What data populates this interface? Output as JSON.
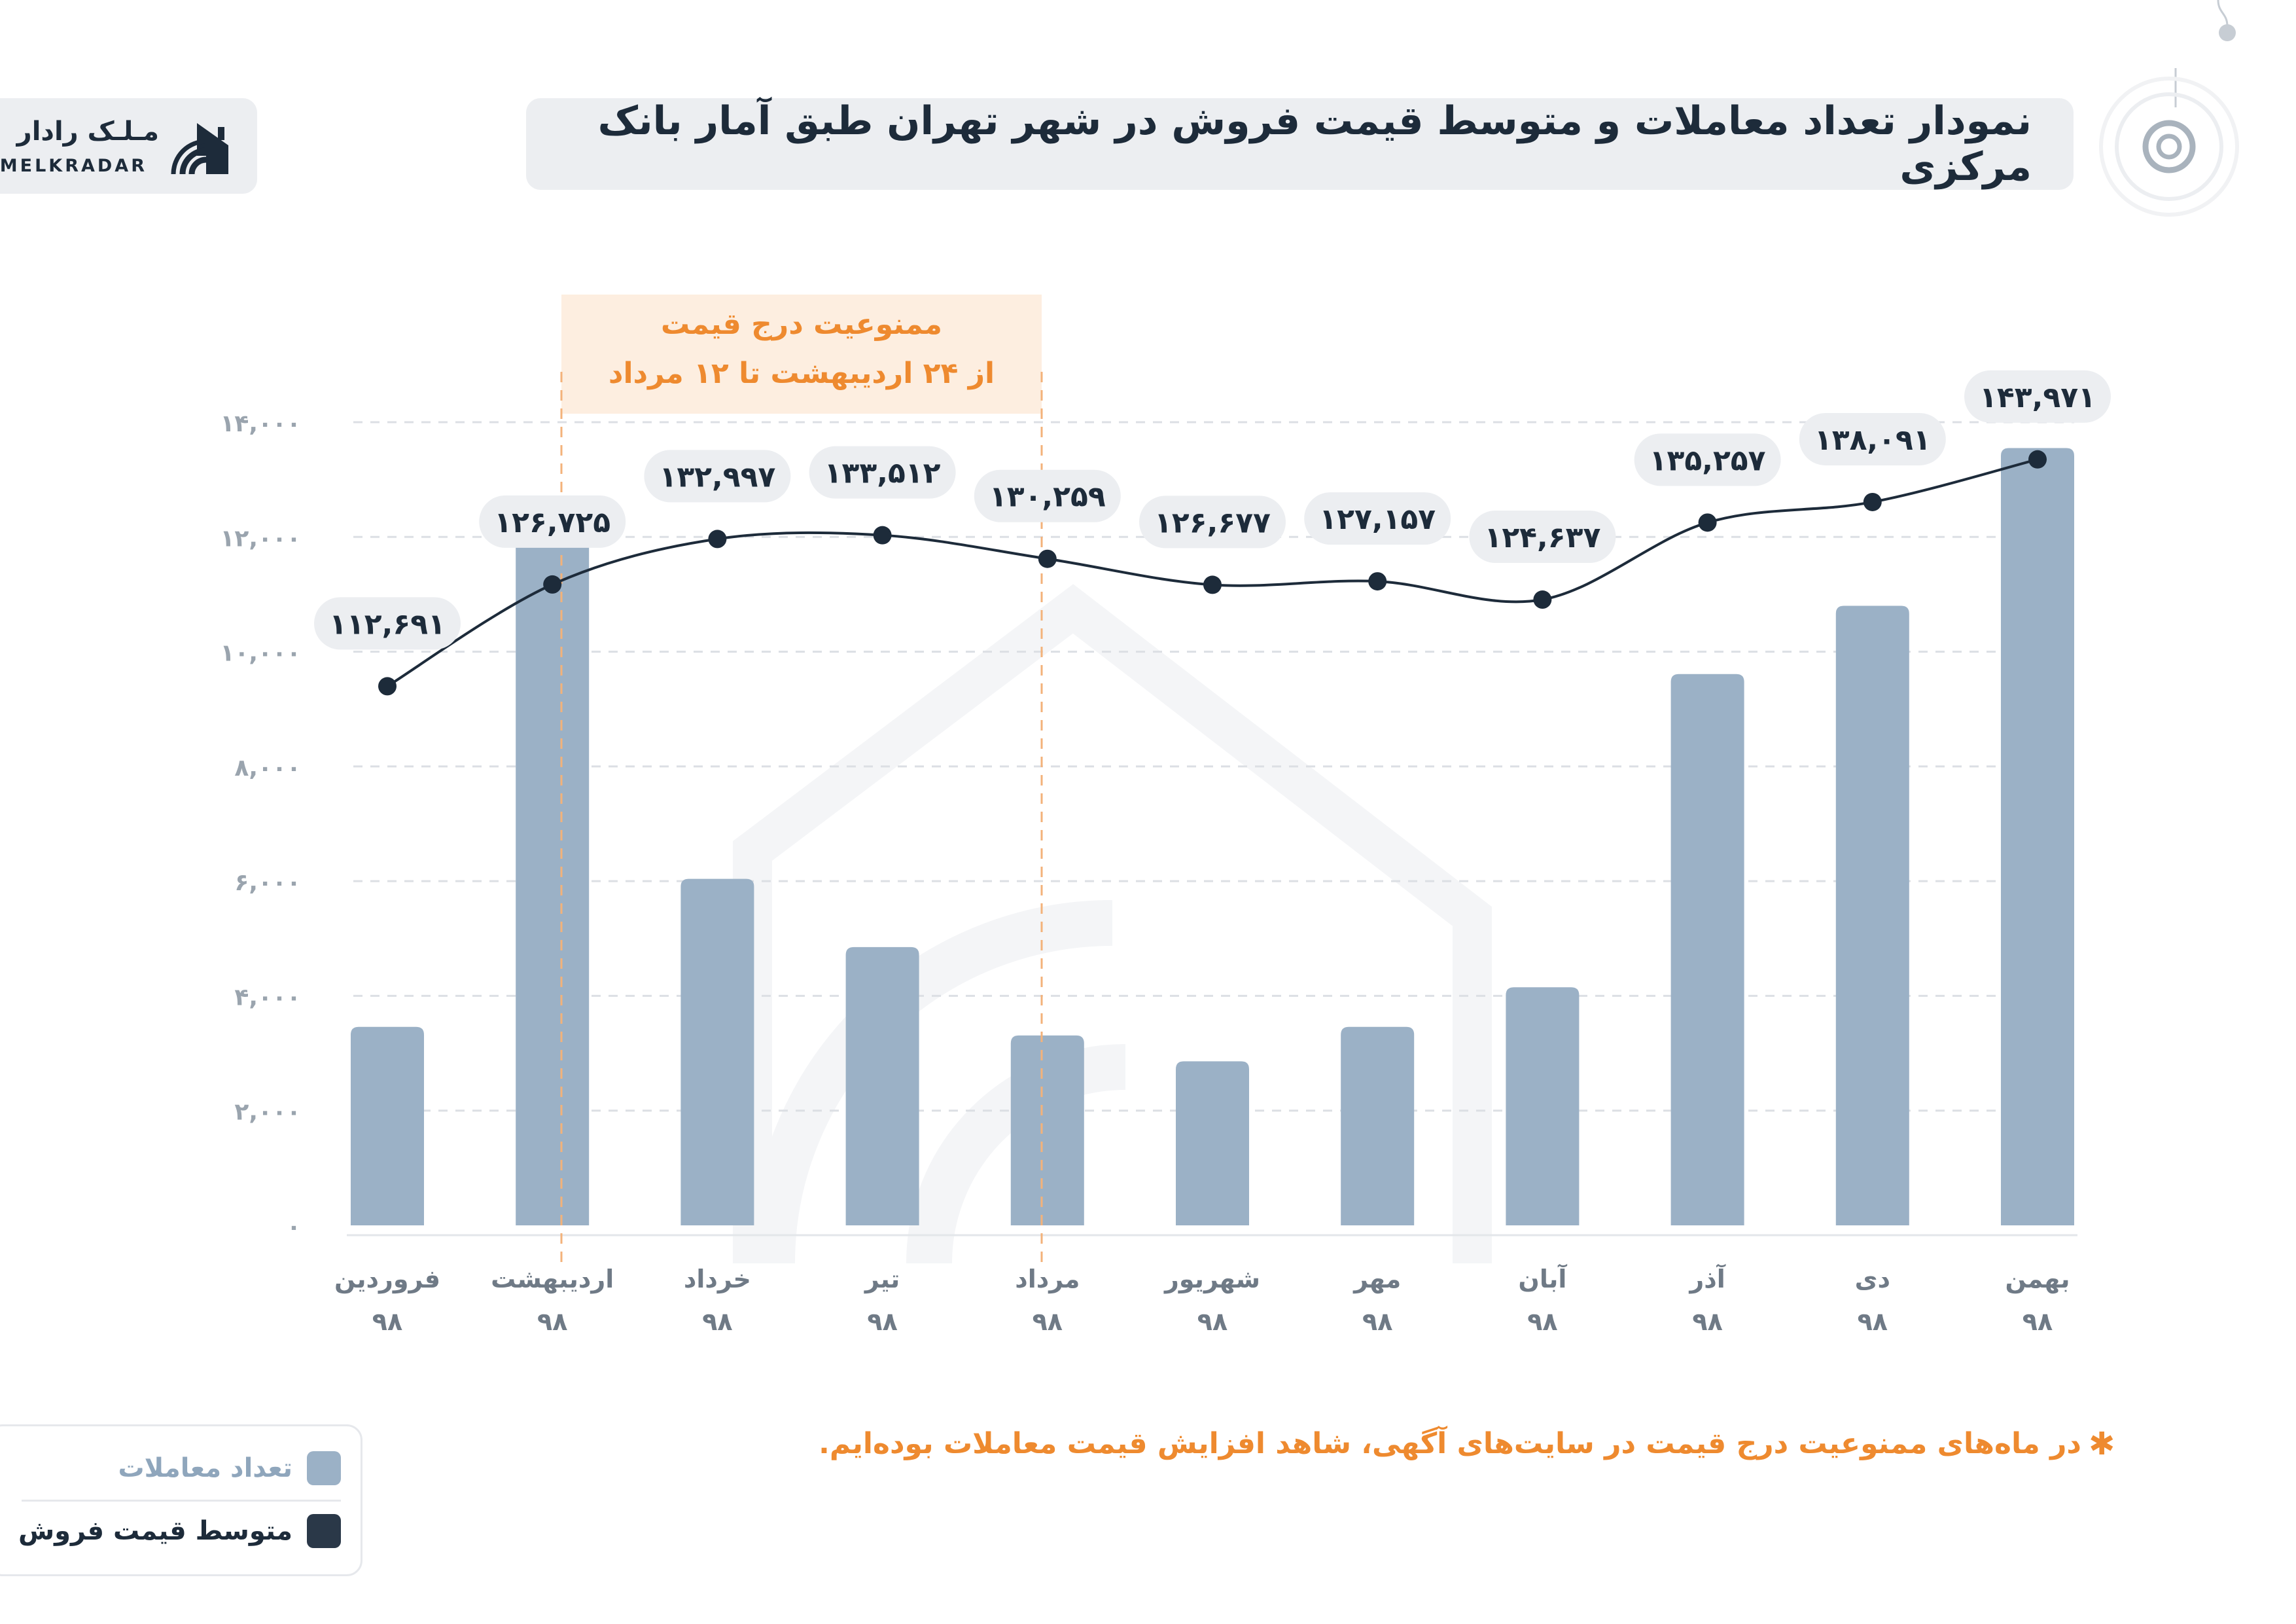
{
  "header": {
    "title": "نمودار تعداد معاملات و متوسط قیمت فروش در شهر تهران طبق آمار بانک مرکزی",
    "logo_fa": "مـلـک رادار",
    "logo_en": "MELKRADAR"
  },
  "colors": {
    "bar": "#9bb1c6",
    "line": "#1d2b3a",
    "accent": "#ee8a2f",
    "ban_fill": "#fdeee0",
    "label_bg": "#eceef1",
    "grid": "#dcdfe4"
  },
  "chart_data": {
    "type": "bar",
    "categories": [
      "فروردین",
      "اردیبهشت",
      "خرداد",
      "تیر",
      "مرداد",
      "شهریور",
      "مهر",
      "آبان",
      "آذر",
      "دی",
      "بهمن"
    ],
    "year_label": "۹۸",
    "ylim": [
      0,
      14000
    ],
    "y_ticks": [
      {
        "value": 0,
        "label": "۰"
      },
      {
        "value": 2000,
        "label": "۲,۰۰۰"
      },
      {
        "value": 4000,
        "label": "۴,۰۰۰"
      },
      {
        "value": 6000,
        "label": "۶,۰۰۰"
      },
      {
        "value": 8000,
        "label": "۸,۰۰۰"
      },
      {
        "value": 10000,
        "label": "۱۰,۰۰۰"
      },
      {
        "value": 12000,
        "label": "۱۲,۰۰۰"
      },
      {
        "value": 14000,
        "label": "۱۴,۰۰۰"
      }
    ],
    "grid": true,
    "series": [
      {
        "name": "تعداد معاملات",
        "type": "bar",
        "values": [
          3460,
          12050,
          6040,
          4850,
          3310,
          2860,
          3460,
          4150,
          9610,
          10800,
          13550
        ]
      },
      {
        "name": "متوسط قیمت فروش",
        "type": "line",
        "values": [
          112691,
          126725,
          132997,
          133512,
          130259,
          126677,
          127157,
          124637,
          135257,
          138091,
          143971
        ],
        "labels": [
          "۱۱۲,۶۹۱",
          "۱۲۶,۷۲۵",
          "۱۳۲,۹۹۷",
          "۱۳۳,۵۱۲",
          "۱۳۰,۲۵۹",
          "۱۲۶,۶۷۷",
          "۱۲۷,۱۵۷",
          "۱۲۴,۶۳۷",
          "۱۳۵,۲۵۷",
          "۱۳۸,۰۹۱",
          "۱۴۳,۹۷۱"
        ]
      }
    ],
    "annotation": {
      "line1": "ممنوعیت درج قیمت",
      "line2": "از ۲۴ اردیبهشت تا ۱۲ مرداد",
      "from_category": 1,
      "to_category": 4
    }
  },
  "footnote": {
    "star": "✱",
    "text": "در ماه‌های ممنوعیت درج قیمت در سایت‌های آگهی، شاهد افزایش قیمت معاملات بوده‌ایم."
  },
  "legend": {
    "items": [
      {
        "label": "تعداد معاملات",
        "color": "#9bb1c6",
        "text_color": "#8fa6bc"
      },
      {
        "label": "متوسط قیمت فروش",
        "color": "#2a3848",
        "text_color": "#1d2b3a"
      }
    ]
  }
}
